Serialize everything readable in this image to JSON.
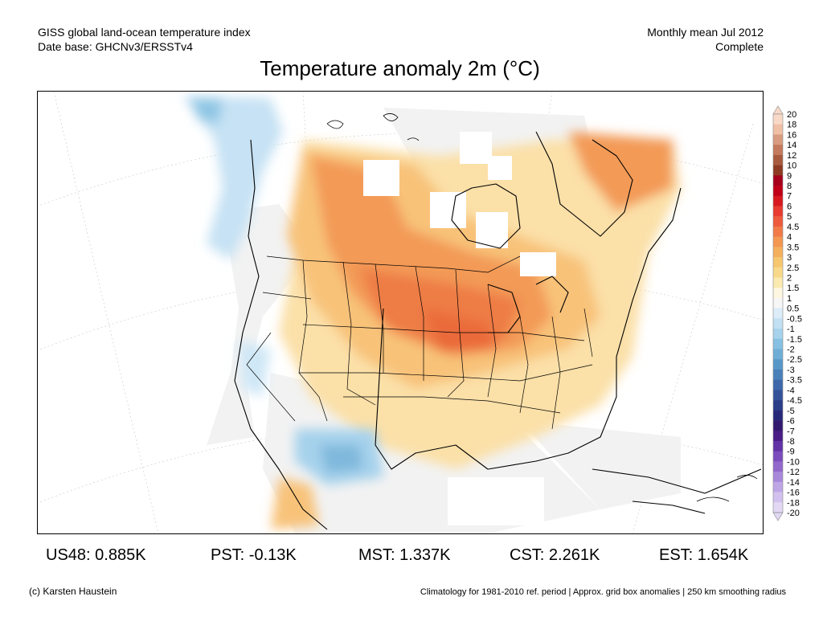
{
  "header": {
    "dataset_line1": "GISS global land-ocean temperature index",
    "dataset_line2": "Date base: GHCNv3/ERSSTv4",
    "period_line1": "Monthly mean Jul 2012",
    "period_line2": "Complete"
  },
  "title": "Temperature anomaly 2m (°C)",
  "regional_stats": [
    {
      "label": "US48: 0.885K"
    },
    {
      "label": "PST: -0.13K"
    },
    {
      "label": "MST: 1.337K"
    },
    {
      "label": "CST: 2.261K"
    },
    {
      "label": "EST: 1.654K"
    }
  ],
  "colorbar": {
    "labels": [
      "20",
      "18",
      "16",
      "14",
      "12",
      "10",
      "9",
      "8",
      "7",
      "6",
      "5",
      "4.5",
      "4",
      "3.5",
      "3",
      "2.5",
      "2",
      "1.5",
      "1",
      "0.5",
      "-0.5",
      "-1",
      "-1.5",
      "-2",
      "-2.5",
      "-3",
      "-3.5",
      "-4",
      "-4.5",
      "-5",
      "-6",
      "-7",
      "-8",
      "-9",
      "-10",
      "-12",
      "-14",
      "-16",
      "-18",
      "-20"
    ],
    "colors": [
      "#f8d9c8",
      "#efc0a6",
      "#d99c80",
      "#c47a5c",
      "#a85a3e",
      "#8e3a22",
      "#a6001c",
      "#c00018",
      "#d81820",
      "#e83a30",
      "#ee5a3e",
      "#f17a48",
      "#f39752",
      "#f5b05e",
      "#f7c770",
      "#f8d98a",
      "#faeab0",
      "#fdf6e0",
      "#f6f6f6",
      "#dcecf8",
      "#c2e0f3",
      "#a6d2ec",
      "#86c0e2",
      "#6eaed6",
      "#5898c8",
      "#4a80ba",
      "#3e68aa",
      "#34529a",
      "#2c3e8a",
      "#28287a",
      "#341a6e",
      "#4a1e86",
      "#6232a6",
      "#7a4cbc",
      "#9268cc",
      "#a888da",
      "#bea6e6",
      "#d2c0ee",
      "#e2d8f4"
    ]
  },
  "footer": {
    "credit": "(c) Karsten Haustein",
    "note": "Climatology for 1981-2010 ref. period | Approx. grid box anomalies | 250 km smoothing radius"
  }
}
